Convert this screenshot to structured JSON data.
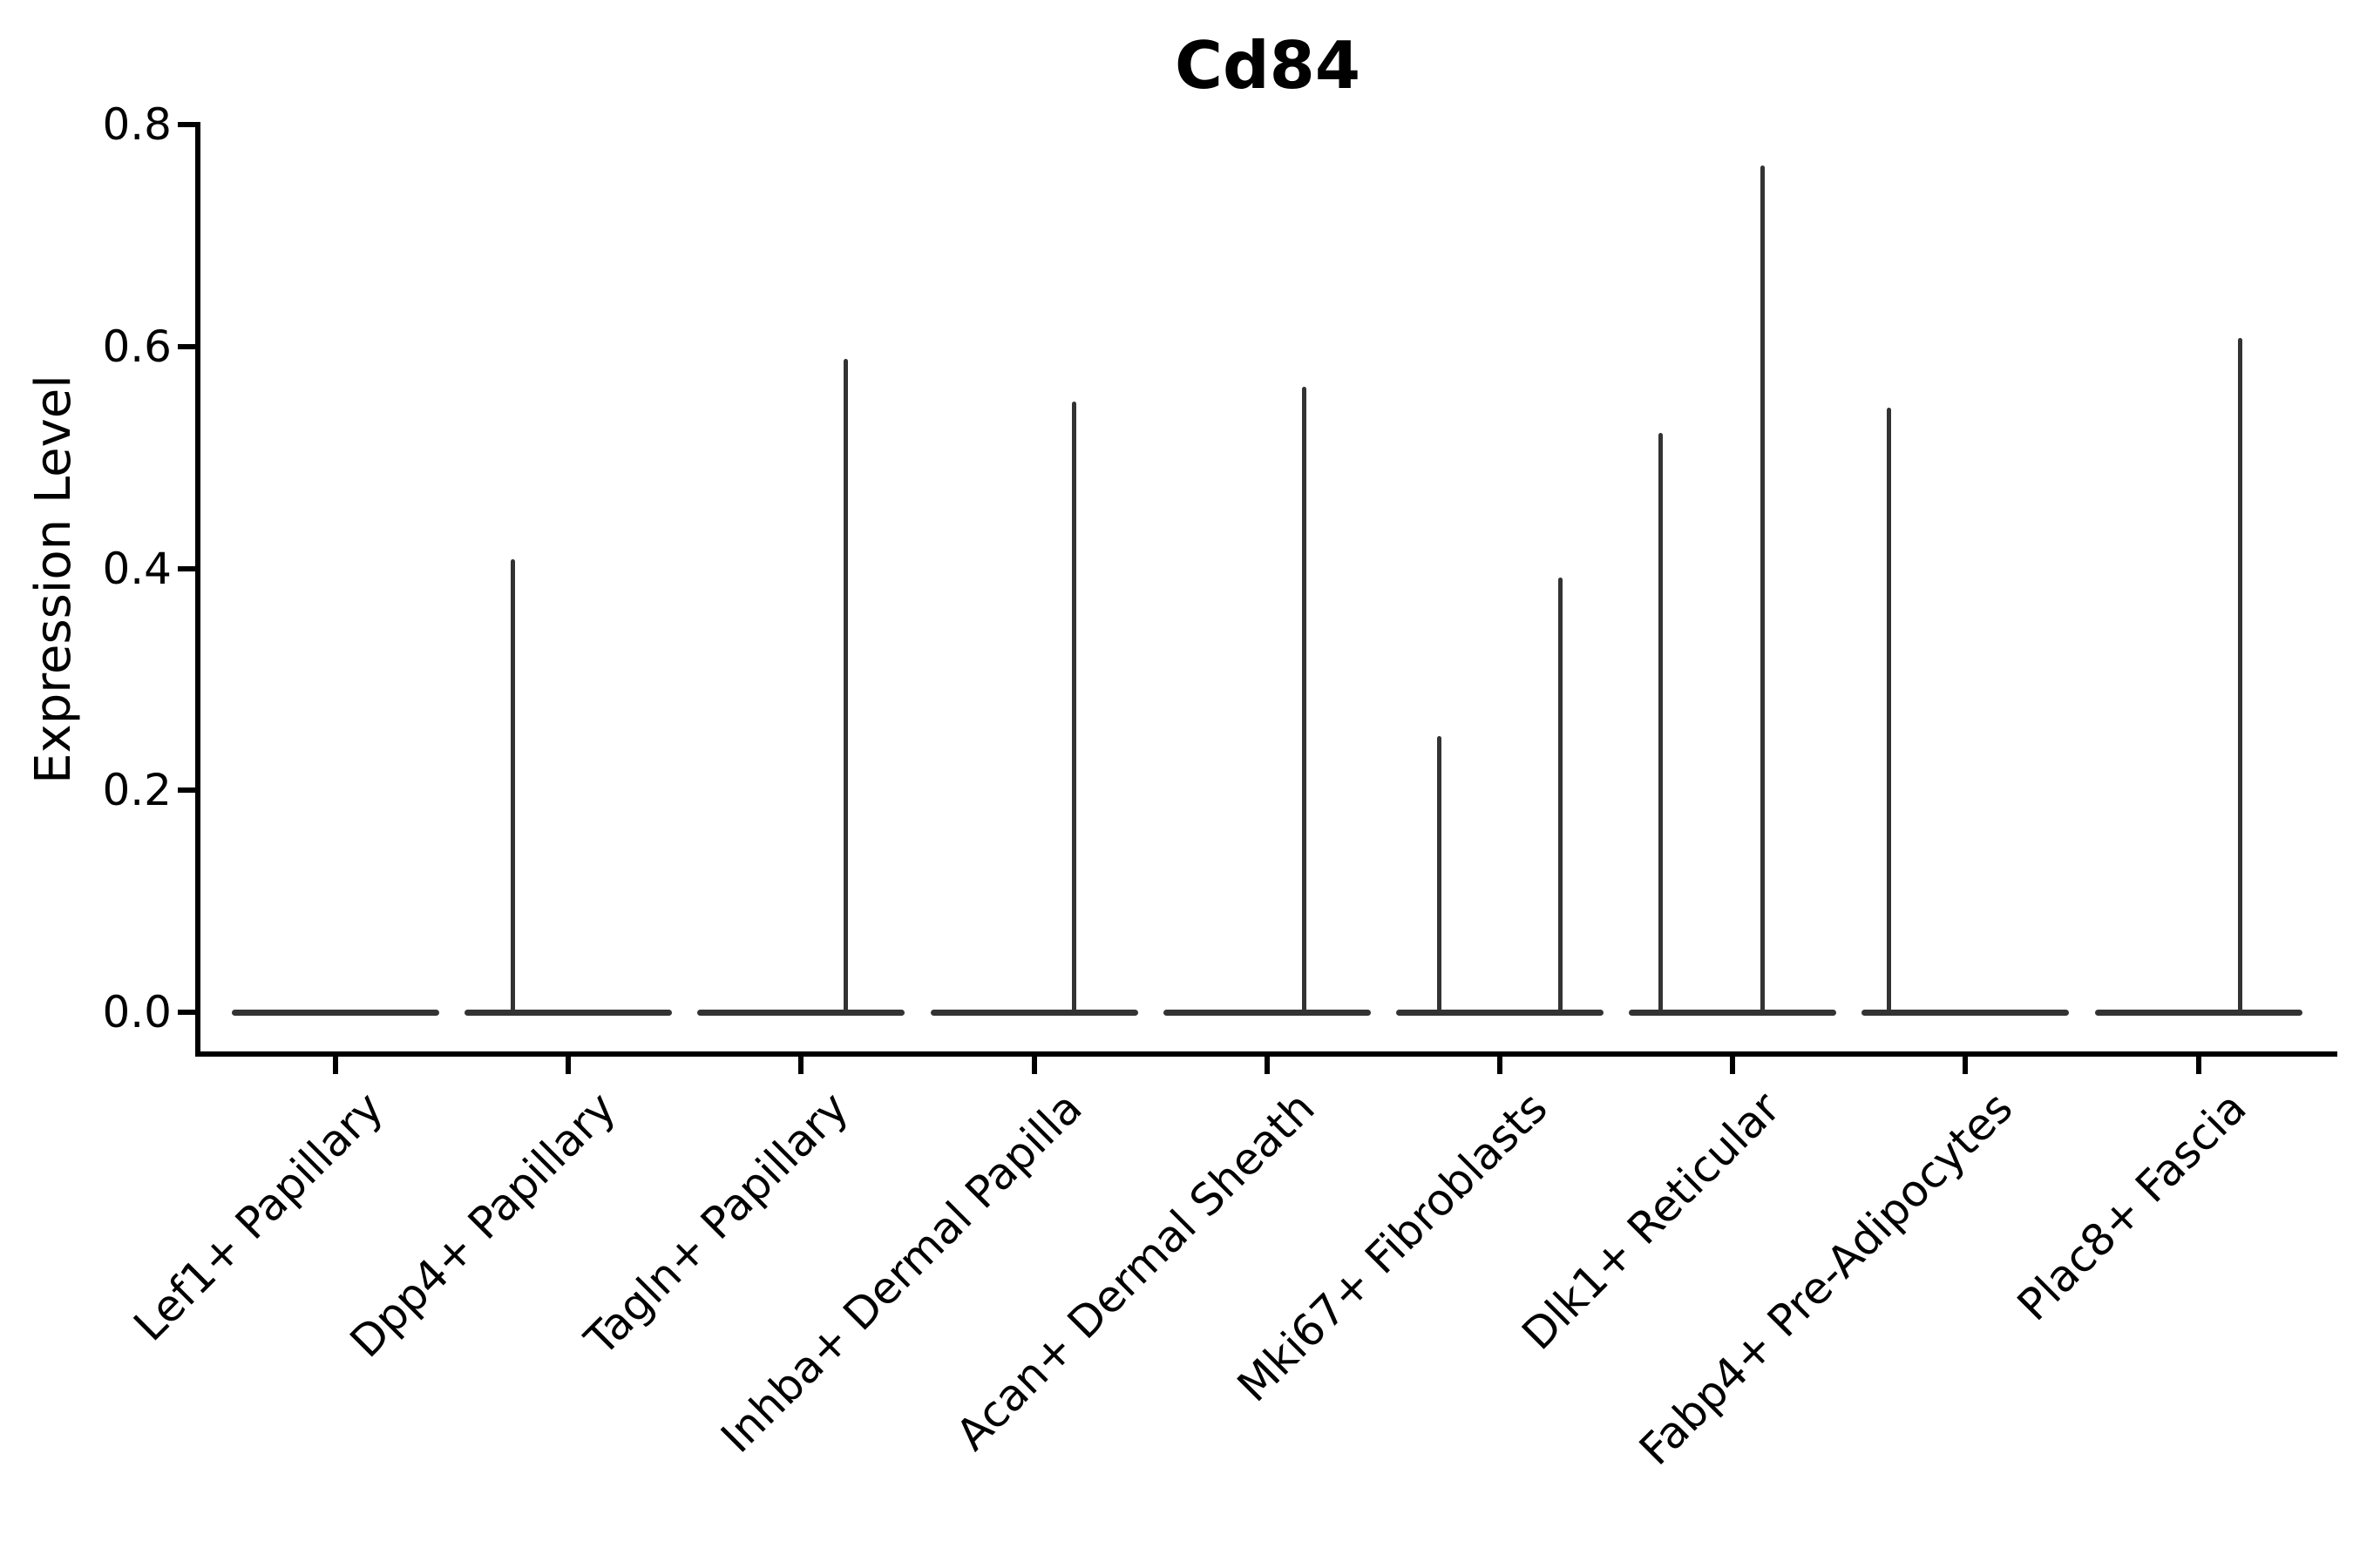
{
  "chart_data": {
    "type": "violin",
    "title": "Cd84",
    "ylabel": "Expression Level",
    "xlabel": "",
    "ylim": [
      0,
      0.8
    ],
    "ytick_labels": [
      "0.0",
      "0.2",
      "0.4",
      "0.6",
      "0.8"
    ],
    "ytick_values": [
      0.0,
      0.2,
      0.4,
      0.6,
      0.8
    ],
    "grid": false,
    "legend": "none",
    "categories": [
      "Lef1+ Papillary",
      "Dpp4+ Papillary",
      "Tagln+ Papillary",
      "Inhba+ Dermal Papilla",
      "Acan+ Dermal Sheath",
      "Mki67+ Fibroblasts",
      "Dlk1+ Reticular",
      "Fabp4+ Pre-Adipocytes",
      "Plac8+ Fascia"
    ],
    "violins": [
      {
        "category": "Lef1+ Papillary",
        "baseline_value": 0.0,
        "spikes": []
      },
      {
        "category": "Dpp4+ Papillary",
        "baseline_value": 0.0,
        "spikes": [
          {
            "value": 0.408,
            "offset": -0.24
          }
        ]
      },
      {
        "category": "Tagln+ Papillary",
        "baseline_value": 0.0,
        "spikes": [
          {
            "value": 0.589,
            "offset": 0.19
          }
        ]
      },
      {
        "category": "Inhba+ Dermal Papilla",
        "baseline_value": 0.0,
        "spikes": [
          {
            "value": 0.55,
            "offset": 0.17
          }
        ]
      },
      {
        "category": "Acan+ Dermal Sheath",
        "baseline_value": 0.0,
        "spikes": [
          {
            "value": 0.564,
            "offset": 0.16
          }
        ]
      },
      {
        "category": "Mki67+ Fibroblasts",
        "baseline_value": 0.0,
        "spikes": [
          {
            "value": 0.249,
            "offset": -0.26
          },
          {
            "value": 0.392,
            "offset": 0.26
          }
        ]
      },
      {
        "category": "Dlk1+ Reticular",
        "baseline_value": 0.0,
        "spikes": [
          {
            "value": 0.522,
            "offset": -0.31
          },
          {
            "value": 0.763,
            "offset": 0.13
          }
        ]
      },
      {
        "category": "Fabp4+ Pre-Adipocytes",
        "baseline_value": 0.0,
        "spikes": [
          {
            "value": 0.545,
            "offset": -0.33
          }
        ]
      },
      {
        "category": "Plac8+ Fascia",
        "baseline_value": 0.0,
        "spikes": [
          {
            "value": 0.608,
            "offset": 0.18
          }
        ]
      }
    ],
    "colors": {
      "violin_stroke": "#333333",
      "axis": "#000000",
      "text": "#000000",
      "background": "#ffffff"
    }
  }
}
